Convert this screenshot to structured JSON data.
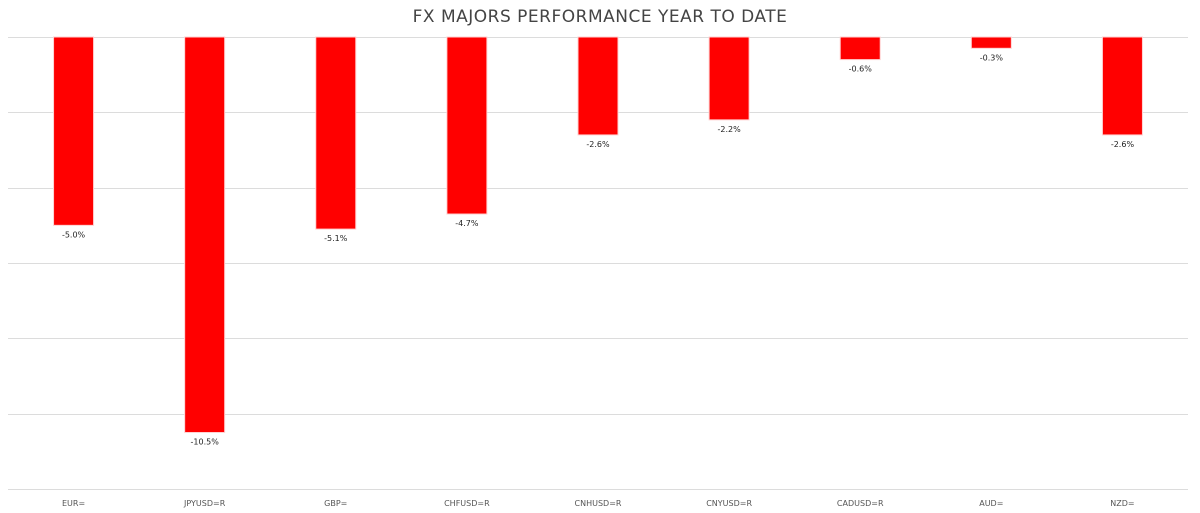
{
  "chart_data": {
    "type": "bar",
    "title": "FX MAJORS PERFORMANCE YEAR TO DATE",
    "categories": [
      "EUR=",
      "JPYUSD=R",
      "GBP=",
      "CHFUSD=R",
      "CNHUSD=R",
      "CNYUSD=R",
      "CADUSD=R",
      "AUD=",
      "NZD="
    ],
    "values": [
      -5.0,
      -10.5,
      -5.1,
      -4.7,
      -2.6,
      -2.2,
      -0.6,
      -0.3,
      -2.6
    ],
    "data_labels": [
      "-5.0%",
      "-10.5%",
      "-5.1%",
      "-4.7%",
      "-2.6%",
      "-2.2%",
      "-0.6%",
      "-0.3%",
      "-2.6%"
    ],
    "xlabel": "",
    "ylabel": "",
    "ylim": [
      -12,
      0
    ],
    "grid": true,
    "grid_step": 2,
    "legend": "none",
    "bar_color": "#ff0000"
  }
}
